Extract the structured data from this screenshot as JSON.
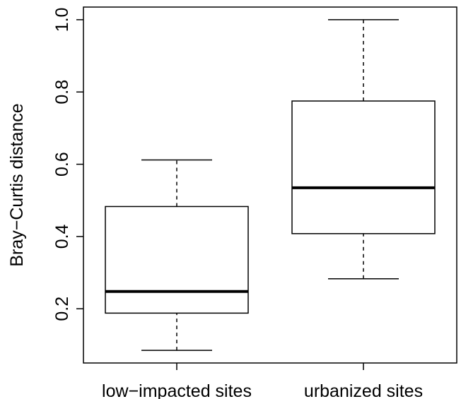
{
  "chart_data": {
    "type": "boxplot",
    "title": "",
    "xlabel": "",
    "ylabel": "Bray−Curtis distance",
    "categories": [
      "low−impacted sites",
      "urbanized sites"
    ],
    "boxes": [
      {
        "category": "low−impacted sites",
        "whisker_low": 0.085,
        "q1": 0.188,
        "median": 0.248,
        "q3": 0.483,
        "whisker_high": 0.612
      },
      {
        "category": "urbanized sites",
        "whisker_low": 0.283,
        "q1": 0.408,
        "median": 0.535,
        "q3": 0.775,
        "whisker_high": 1.0
      }
    ],
    "yticks": [
      "0.2",
      "0.4",
      "0.6",
      "0.8",
      "1.0"
    ],
    "ylim": [
      0.05,
      1.035
    ],
    "grid": false,
    "legend": "none"
  }
}
